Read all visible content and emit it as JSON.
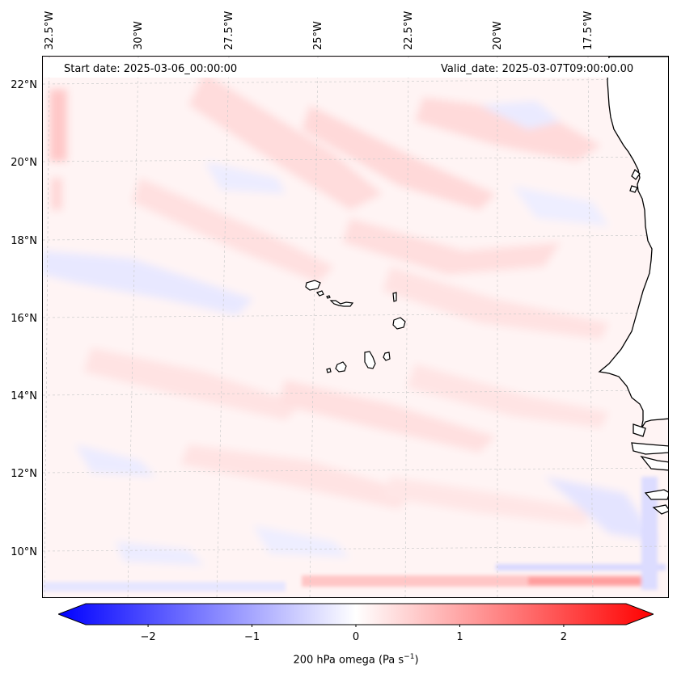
{
  "map": {
    "start_date": "Start date: 2025-03-06_00:00:00",
    "valid_date": "Valid_date: 2025-03-07T09:00:00.00",
    "lon_labels": [
      "32.5°W",
      "30°W",
      "27.5°W",
      "25°W",
      "22.5°W",
      "20°W",
      "17.5°W"
    ],
    "lat_labels": [
      "22°N",
      "20°N",
      "18°N",
      "16°N",
      "14°N",
      "12°N",
      "10°N"
    ],
    "field": "200 hPa omega",
    "units_prefix": "200 hPa omega (Pa s",
    "units_exp": "−1",
    "units_suffix": ")"
  },
  "colorbar": {
    "ticks": [
      "−2",
      "−1",
      "0",
      "1",
      "2"
    ],
    "tick_values": [
      -2,
      -1,
      0,
      1,
      2
    ],
    "range": [
      -2.6,
      2.6
    ],
    "low_color": "#0000ff",
    "mid_color": "#ffffff",
    "high_color": "#ff0000"
  },
  "colors": {
    "land": "#ffffff",
    "coast": "#000000",
    "grid": "#cccccc"
  }
}
